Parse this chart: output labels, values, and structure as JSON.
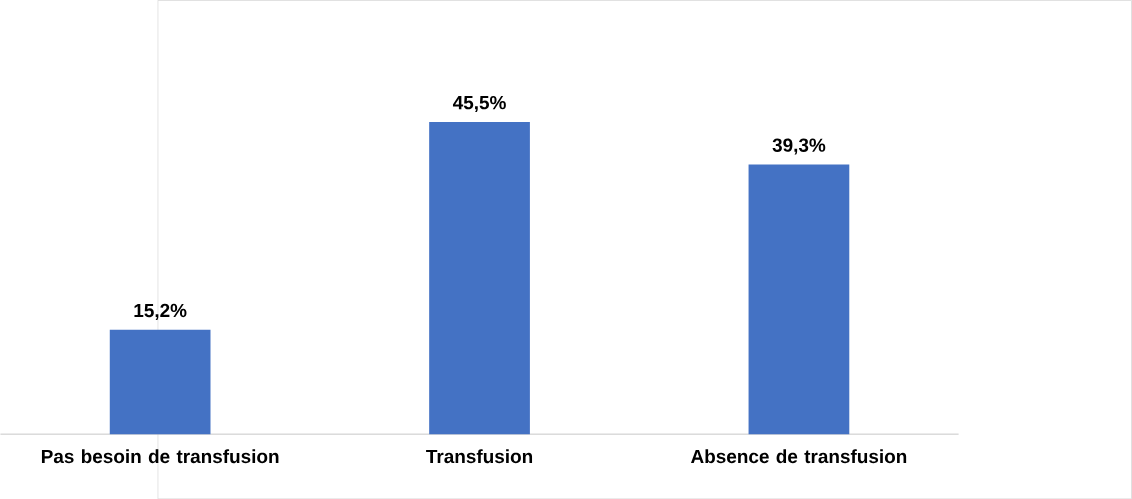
{
  "chart_data": {
    "type": "bar",
    "categories": [
      "Pas besoin de transfusion",
      "Transfusion",
      "Absence de transfusion"
    ],
    "values": [
      15.2,
      45.5,
      39.3
    ],
    "value_labels": [
      "15,2%",
      "45,5%",
      "39,3%"
    ],
    "color": "#4472c4"
  }
}
